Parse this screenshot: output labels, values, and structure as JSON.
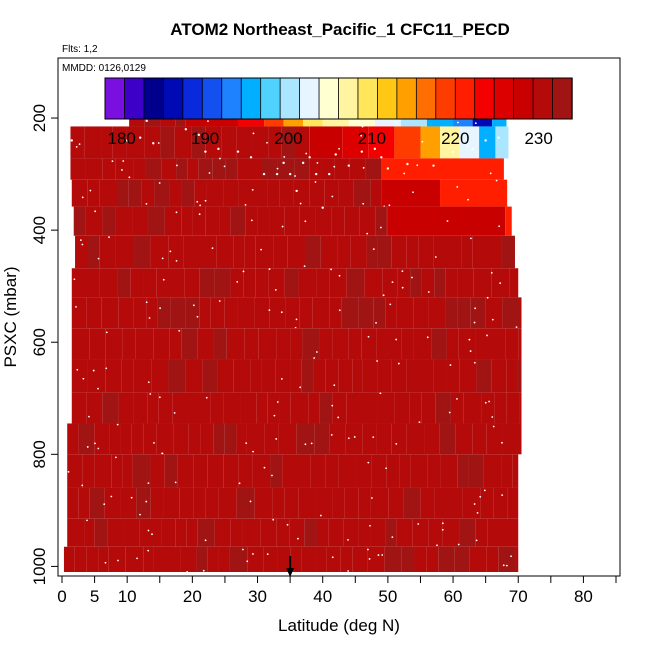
{
  "chart_data": {
    "type": "heatmap",
    "title": "ATOM2 Northeast_Pacific_1 CFC11_PECD",
    "annotations": [
      "Flts: 1,2",
      "MMDD: 0126,0129"
    ],
    "xlabel": "Latitude (deg N)",
    "ylabel": "PSXC (mbar)",
    "xlim": [
      0,
      85
    ],
    "ylim": [
      1010,
      100
    ],
    "x_ticks": [
      0,
      5,
      10,
      20,
      30,
      40,
      50,
      60,
      70,
      80
    ],
    "x_minor_ticks": [
      15,
      25,
      35,
      45,
      55,
      65,
      75,
      85
    ],
    "y_ticks": [
      200,
      400,
      600,
      800,
      1000
    ],
    "colorbar": {
      "range": [
        178,
        234
      ],
      "ticks": [
        180,
        190,
        200,
        210,
        220,
        230
      ],
      "colors": [
        "#7a10e0",
        "#3c00c8",
        "#00008c",
        "#000ab4",
        "#0a28dc",
        "#1450f0",
        "#1e82ff",
        "#00afff",
        "#50d2ff",
        "#aae6ff",
        "#e6f5ff",
        "#ffffd2",
        "#fff5a0",
        "#ffe65a",
        "#ffc814",
        "#ffa000",
        "#ff6e00",
        "#ff3c00",
        "#ff1e00",
        "#f50000",
        "#dc0000",
        "#c80000",
        "#b40a0a",
        "#a01414"
      ]
    },
    "flight_track_marker_lat": 35,
    "base_value": 231,
    "rows": [
      {
        "p_top": 170,
        "p_bot": 215,
        "lat0": 10.3,
        "lat1": 68.2,
        "seg": [
          [
            10.3,
            19,
            231
          ],
          [
            19,
            27,
            229
          ],
          [
            27,
            31,
            223
          ],
          [
            31,
            34,
            218
          ],
          [
            34,
            37,
            214
          ],
          [
            37,
            40,
            210
          ],
          [
            40,
            44,
            206
          ],
          [
            44,
            48,
            204
          ],
          [
            48,
            52,
            203
          ],
          [
            52,
            56,
            200
          ],
          [
            56,
            60,
            196
          ],
          [
            60,
            63,
            192
          ],
          [
            63,
            66,
            187
          ],
          [
            66,
            68.2,
            195
          ]
        ]
      },
      {
        "p_top": 215,
        "p_bot": 272,
        "lat0": 1.3,
        "lat1": 68.5,
        "seg": [
          [
            1.3,
            38,
            231
          ],
          [
            38,
            43,
            229
          ],
          [
            43,
            47,
            226
          ],
          [
            47,
            51,
            223
          ],
          [
            51,
            55,
            219
          ],
          [
            55,
            58,
            214
          ],
          [
            58,
            61,
            208
          ],
          [
            61,
            64,
            203
          ],
          [
            64,
            66.5,
            195
          ],
          [
            66.5,
            68.5,
            199
          ]
        ]
      },
      {
        "p_top": 272,
        "p_bot": 310,
        "lat0": 1.3,
        "lat1": 67.8,
        "seg": [
          [
            1.3,
            49,
            231
          ],
          [
            49,
            67.8,
            220
          ]
        ]
      },
      {
        "p_top": 310,
        "p_bot": 358,
        "lat0": 1.5,
        "lat1": 68.3,
        "seg": [
          [
            1.5,
            49,
            231
          ],
          [
            49,
            58,
            229
          ],
          [
            58,
            68.3,
            220
          ]
        ]
      },
      {
        "p_top": 358,
        "p_bot": 410,
        "lat0": 1.8,
        "lat1": 69.0,
        "seg": [
          [
            1.8,
            50,
            231
          ],
          [
            50,
            68,
            229
          ],
          [
            68,
            69,
            221
          ]
        ]
      },
      {
        "p_top": 410,
        "p_bot": 468,
        "lat0": 2.0,
        "lat1": 69.5,
        "seg": [
          [
            2,
            69.5,
            231
          ]
        ]
      },
      {
        "p_top": 468,
        "p_bot": 520,
        "lat0": 1.5,
        "lat1": 70.0,
        "seg": [
          [
            1.5,
            70,
            231
          ]
        ]
      },
      {
        "p_top": 520,
        "p_bot": 575,
        "lat0": 1.5,
        "lat1": 70.5,
        "seg": [
          [
            1.5,
            70.5,
            231
          ]
        ]
      },
      {
        "p_top": 575,
        "p_bot": 630,
        "lat0": 1.5,
        "lat1": 70.5,
        "seg": [
          [
            1.5,
            70.5,
            231
          ]
        ]
      },
      {
        "p_top": 630,
        "p_bot": 690,
        "lat0": 1.5,
        "lat1": 70.5,
        "seg": [
          [
            1.5,
            70.5,
            231
          ]
        ]
      },
      {
        "p_top": 690,
        "p_bot": 745,
        "lat0": 1.5,
        "lat1": 70.5,
        "seg": [
          [
            1.5,
            70.5,
            231
          ]
        ]
      },
      {
        "p_top": 745,
        "p_bot": 800,
        "lat0": 0.8,
        "lat1": 70.5,
        "seg": [
          [
            0.8,
            70.5,
            231
          ]
        ]
      },
      {
        "p_top": 800,
        "p_bot": 860,
        "lat0": 0.8,
        "lat1": 70.0,
        "seg": [
          [
            0.8,
            70,
            231
          ]
        ]
      },
      {
        "p_top": 860,
        "p_bot": 915,
        "lat0": 0.8,
        "lat1": 70.0,
        "seg": [
          [
            0.8,
            70,
            231
          ]
        ]
      },
      {
        "p_top": 915,
        "p_bot": 965,
        "lat0": 0.8,
        "lat1": 70.0,
        "seg": [
          [
            0.8,
            70,
            231
          ]
        ]
      },
      {
        "p_top": 965,
        "p_bot": 1010,
        "lat0": 0.3,
        "lat1": 70.0,
        "seg": [
          [
            0.3,
            70,
            231
          ]
        ]
      }
    ]
  }
}
